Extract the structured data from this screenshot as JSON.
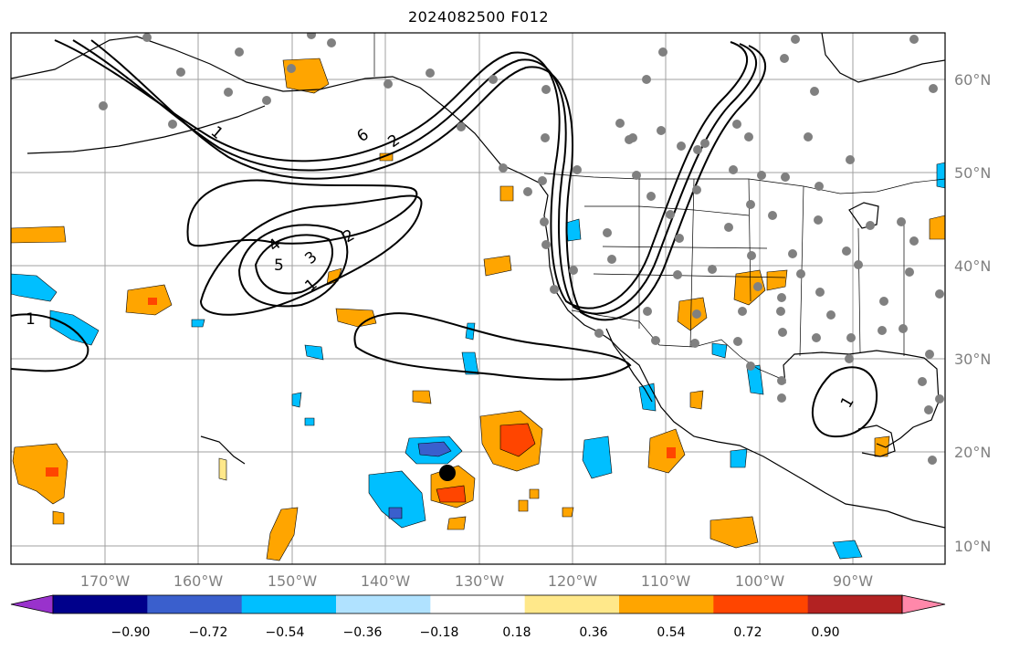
{
  "title": "2024082500 F012",
  "longitude_labels": [
    "170°W",
    "160°W",
    "150°W",
    "140°W",
    "130°W",
    "120°W",
    "110°W",
    "100°W",
    "90°W"
  ],
  "latitude_labels": [
    "60°N",
    "50°N",
    "40°N",
    "30°N",
    "20°N",
    "10°N"
  ],
  "colorbar": {
    "tick_labels": [
      "−0.90",
      "−0.72",
      "−0.54",
      "−0.36",
      "−0.18",
      "0.18",
      "0.36",
      "0.54",
      "0.72",
      "0.90"
    ],
    "colors": [
      "#9932cc",
      "#00008b",
      "#3a5fcd",
      "#00bfff",
      "#b0e2ff",
      "#ffffff",
      "#ffe88a",
      "#ffa500",
      "#ff4500",
      "#b22222",
      "#ff88aa"
    ]
  },
  "contour_labels": [
    "1",
    "2",
    "3",
    "4",
    "5",
    "6",
    "1",
    "2",
    "1",
    "1"
  ],
  "colors": {
    "positive_light": "#ffe88a",
    "positive_mid": "#ffa500",
    "positive_strong": "#ff4500",
    "negative_light": "#b0e2ff",
    "negative_mid": "#00bfff",
    "negative_strong": "#3a5fcd",
    "station_dot": "#808080",
    "storm_marker": "#000000",
    "grid": "#a0a0a0"
  },
  "storm_marker": {
    "lon": -133.5,
    "lat": 17.5
  }
}
